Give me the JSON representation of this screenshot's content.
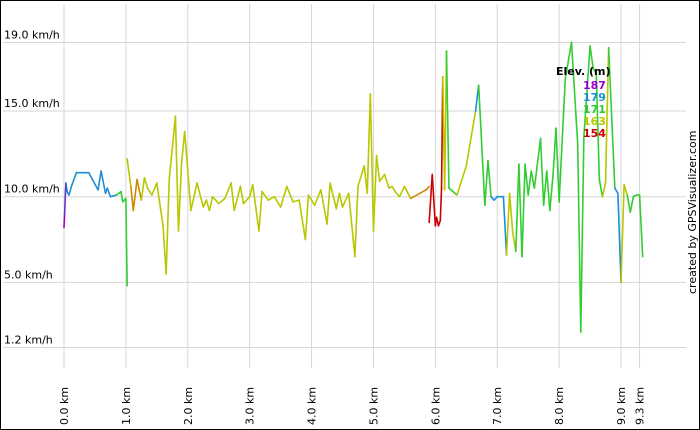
{
  "credit": "created by GPSVisualizer.com",
  "chart_data": {
    "type": "line",
    "title": "",
    "xlabel": "",
    "ylabel": "",
    "xlim": [
      0,
      10.05
    ],
    "ylim": [
      0,
      21.25
    ],
    "grid": true,
    "x_ticks": [
      {
        "value": 0.0,
        "label": "0.0 km"
      },
      {
        "value": 1.0,
        "label": "1.0 km"
      },
      {
        "value": 2.0,
        "label": "2.0 km"
      },
      {
        "value": 3.0,
        "label": "3.0 km"
      },
      {
        "value": 4.0,
        "label": "4.0 km"
      },
      {
        "value": 5.0,
        "label": "5.0 km"
      },
      {
        "value": 6.0,
        "label": "6.0 km"
      },
      {
        "value": 7.0,
        "label": "7.0 km"
      },
      {
        "value": 8.0,
        "label": "8.0 km"
      },
      {
        "value": 9.0,
        "label": "9.0 km"
      },
      {
        "value": 9.3,
        "label": "9.3 km"
      }
    ],
    "y_ticks": [
      {
        "value": 1.2,
        "label": "1.2 km/h"
      },
      {
        "value": 5.0,
        "label": "5.0 km/h"
      },
      {
        "value": 10.0,
        "label": "10.0 km/h"
      },
      {
        "value": 15.0,
        "label": "15.0 km/h"
      },
      {
        "value": 19.0,
        "label": "19.0 km/h"
      }
    ],
    "legend": {
      "title": "Elev. (m)",
      "position": "top-right",
      "entries": [
        {
          "label": "187",
          "color": "#9900cc"
        },
        {
          "label": "179",
          "color": "#1a8fd6"
        },
        {
          "label": "171",
          "color": "#33cc33"
        },
        {
          "label": "163",
          "color": "#b8c700"
        },
        {
          "label": "154",
          "color": "#cc0000"
        }
      ]
    },
    "series": [
      {
        "x": [
          0.0,
          0.01,
          0.03,
          0.05,
          0.08,
          0.12,
          0.2,
          0.4,
          0.55,
          0.6,
          0.67,
          0.7,
          0.75,
          0.85,
          0.92,
          0.95,
          1.0,
          1.02
        ],
        "y": [
          8.2,
          9.0,
          10.8,
          10.3,
          10.1,
          10.6,
          11.4,
          11.4,
          10.4,
          11.5,
          10.2,
          10.5,
          10.0,
          10.1,
          10.3,
          9.7,
          9.9,
          4.8
        ],
        "colors": [
          "#9900cc",
          "#9900cc",
          "#6633cc",
          "#3366cc",
          "#1a8fd6",
          "#1a8fd6",
          "#1a8fd6",
          "#1a8fd6",
          "#1a8fd6",
          "#1a8fd6",
          "#1a8fd6",
          "#1a8fd6",
          "#1a8fd6",
          "#1a8fd6",
          "#33cc33",
          "#33cc33",
          "#33cc33",
          "#33cc33"
        ]
      },
      {
        "x": [
          1.02,
          1.08,
          1.12,
          1.18,
          1.25,
          1.3,
          1.35,
          1.42,
          1.5,
          1.6,
          1.65,
          1.7,
          1.8,
          1.85,
          1.9,
          1.95,
          2.05,
          2.15,
          2.25,
          2.3,
          2.35,
          2.4,
          2.5,
          2.6,
          2.7,
          2.75,
          2.85,
          2.9,
          3.0,
          3.05,
          3.15,
          3.2,
          3.3,
          3.4,
          3.5,
          3.6,
          3.7,
          3.8,
          3.9,
          3.95,
          4.05,
          4.15,
          4.25,
          4.3,
          4.4,
          4.45,
          4.5,
          4.6,
          4.7,
          4.75,
          4.85,
          4.9,
          4.95,
          5.0,
          5.05,
          5.1,
          5.18,
          5.25,
          5.3,
          5.35,
          5.42,
          5.5,
          5.6,
          5.75,
          5.85,
          5.9
        ],
        "y": [
          12.2,
          10.6,
          9.2,
          11.0,
          9.8,
          11.1,
          10.5,
          10.1,
          10.8,
          8.3,
          5.5,
          11.0,
          14.7,
          8.0,
          12.0,
          13.8,
          9.2,
          10.8,
          9.4,
          9.8,
          9.2,
          10.0,
          9.6,
          9.9,
          10.8,
          9.2,
          10.6,
          9.6,
          10.0,
          10.7,
          8.0,
          10.3,
          9.8,
          10.0,
          9.4,
          10.6,
          9.7,
          9.8,
          7.5,
          10.1,
          9.5,
          10.4,
          8.4,
          10.8,
          9.3,
          10.2,
          9.4,
          10.2,
          6.5,
          10.6,
          11.8,
          10.2,
          16.0,
          8.0,
          12.4,
          10.9,
          11.3,
          10.5,
          10.6,
          10.3,
          10.0,
          10.6,
          9.9,
          10.2,
          10.4,
          10.6
        ],
        "colors": [
          "#33cc33",
          "#b8c700",
          "#cc8800",
          "#cc8800",
          "#cc8800",
          "#b8c700",
          "#b8c700",
          "#b8c700",
          "#b8c700",
          "#b8c700",
          "#b8c700",
          "#b8c700",
          "#b8c700",
          "#b8c700",
          "#b8c700",
          "#b8c700",
          "#b8c700",
          "#b8c700",
          "#b8c700",
          "#b8c700",
          "#b8c700",
          "#b8c700",
          "#b8c700",
          "#b8c700",
          "#b8c700",
          "#b8c700",
          "#b8c700",
          "#b8c700",
          "#b8c700",
          "#b8c700",
          "#b8c700",
          "#b8c700",
          "#b8c700",
          "#b8c700",
          "#b8c700",
          "#b8c700",
          "#b8c700",
          "#b8c700",
          "#b8c700",
          "#b8c700",
          "#b8c700",
          "#b8c700",
          "#b8c700",
          "#b8c700",
          "#b8c700",
          "#b8c700",
          "#b8c700",
          "#b8c700",
          "#b8c700",
          "#b8c700",
          "#b8c700",
          "#b8c700",
          "#b8c700",
          "#b8c700",
          "#b8c700",
          "#b8c700",
          "#b8c700",
          "#b8c700",
          "#b8c700",
          "#b8c700",
          "#b8c700",
          "#b8c700",
          "#b8c700",
          "#cc8800",
          "#cc8800",
          "#cc8800"
        ]
      },
      {
        "x": [
          5.9,
          5.95,
          6.0,
          6.02,
          6.05,
          6.08,
          6.1,
          6.12,
          6.15,
          6.18,
          6.22,
          6.35,
          6.5,
          6.65,
          6.7,
          6.8,
          6.85,
          6.9,
          6.95,
          7.0,
          7.1,
          7.15,
          7.2,
          7.25,
          7.3,
          7.35,
          7.4,
          7.45,
          7.5,
          7.55,
          7.6,
          7.7,
          7.75,
          7.8,
          7.85,
          7.9,
          7.95,
          8.0,
          8.1,
          8.2,
          8.3,
          8.35,
          8.4,
          8.5,
          8.55,
          8.6,
          8.65,
          8.7,
          8.75,
          8.8,
          8.9,
          8.95,
          9.0,
          9.05,
          9.1,
          9.15,
          9.2,
          9.25,
          9.3,
          9.35
        ],
        "y": [
          8.5,
          11.3,
          8.3,
          8.8,
          8.3,
          8.6,
          10.5,
          17.0,
          10.4,
          18.5,
          10.5,
          10.1,
          11.8,
          15.0,
          16.5,
          9.5,
          12.1,
          10.0,
          9.8,
          10.0,
          10.0,
          6.6,
          10.2,
          7.9,
          6.8,
          11.9,
          6.5,
          11.9,
          10.1,
          11.5,
          10.5,
          13.4,
          9.5,
          11.5,
          9.2,
          11.2,
          14.0,
          9.7,
          16.9,
          19.0,
          13.1,
          2.1,
          13.5,
          18.8,
          17.5,
          17.2,
          11.0,
          10.0,
          10.8,
          18.7,
          10.5,
          10.2,
          5.0,
          10.7,
          10.1,
          9.1,
          10.0,
          10.1,
          10.1,
          6.5
        ],
        "colors": [
          "#cc0000",
          "#cc0000",
          "#cc0000",
          "#cc0000",
          "#cc0000",
          "#cc0000",
          "#cc0000",
          "#cc0000",
          "#b8c700",
          "#b8c700",
          "#33cc33",
          "#33cc33",
          "#b8c700",
          "#b8c700",
          "#1a8fd6",
          "#33cc33",
          "#33cc33",
          "#33cc33",
          "#1a8fd6",
          "#1a8fd6",
          "#1a8fd6",
          "#1a8fd6",
          "#b8c700",
          "#b8c700",
          "#b8c700",
          "#33cc33",
          "#33cc33",
          "#33cc33",
          "#33cc33",
          "#33cc33",
          "#33cc33",
          "#33cc33",
          "#33cc33",
          "#33cc33",
          "#33cc33",
          "#33cc33",
          "#33cc33",
          "#33cc33",
          "#33cc33",
          "#33cc33",
          "#33cc33",
          "#33cc33",
          "#33cc33",
          "#33cc33",
          "#33cc33",
          "#33cc33",
          "#33cc33",
          "#33cc33",
          "#b8c700",
          "#b8c700",
          "#33cc33",
          "#1a8fd6",
          "#1a8fd6",
          "#b8c700",
          "#b8c700",
          "#33cc33",
          "#33cc33",
          "#33cc33",
          "#33cc33",
          "#33cc33"
        ]
      }
    ]
  }
}
